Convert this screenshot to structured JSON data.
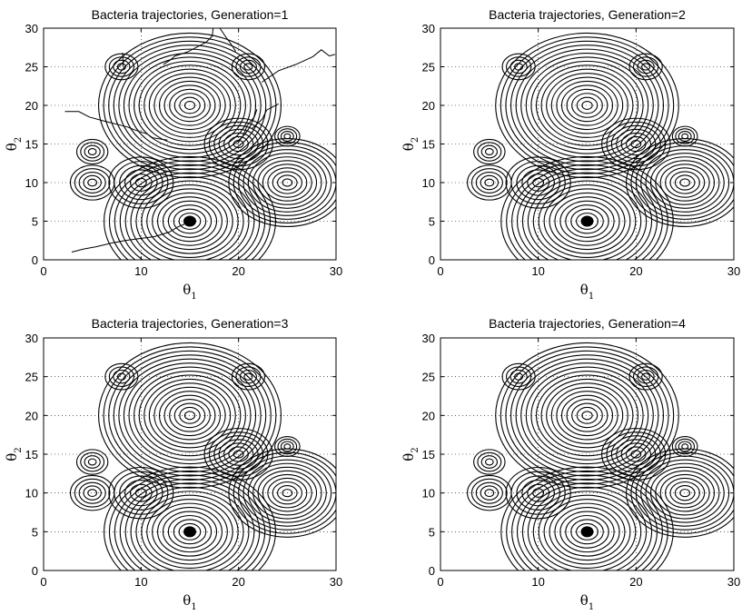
{
  "chart_data": [
    {
      "type": "contour",
      "title": "Bacteria trajectories, Generation=1",
      "xlabel": "θ1",
      "ylabel": "θ2",
      "xlim": [
        0,
        30
      ],
      "ylim": [
        0,
        30
      ],
      "xticks": [
        0,
        10,
        20,
        30
      ],
      "yticks": [
        0,
        5,
        10,
        15,
        20,
        25,
        30
      ],
      "grid": true,
      "peaks": [
        {
          "x": 15,
          "y": 20,
          "rings": 18
        },
        {
          "x": 15,
          "y": 5,
          "rings": 16
        },
        {
          "x": 25,
          "y": 10,
          "rings": 12
        },
        {
          "x": 20,
          "y": 15,
          "rings": 7
        },
        {
          "x": 10,
          "y": 10,
          "rings": 6
        },
        {
          "x": 5,
          "y": 10,
          "rings": 5
        },
        {
          "x": 5,
          "y": 14,
          "rings": 4
        },
        {
          "x": 8,
          "y": 25,
          "rings": 4
        },
        {
          "x": 21,
          "y": 25,
          "rings": 4
        },
        {
          "x": 25,
          "y": 16,
          "rings": 4
        }
      ],
      "trajectory_end": {
        "x": 15,
        "y": 5
      }
    },
    {
      "type": "contour",
      "title": "Bacteria trajectories, Generation=2",
      "xlabel": "θ1",
      "ylabel": "θ2",
      "xlim": [
        0,
        30
      ],
      "ylim": [
        0,
        30
      ],
      "xticks": [
        0,
        10,
        20,
        30
      ],
      "yticks": [
        0,
        5,
        10,
        15,
        20,
        25,
        30
      ],
      "grid": true,
      "peaks": [
        {
          "x": 15,
          "y": 20,
          "rings": 18
        },
        {
          "x": 15,
          "y": 5,
          "rings": 16
        },
        {
          "x": 25,
          "y": 10,
          "rings": 12
        },
        {
          "x": 20,
          "y": 15,
          "rings": 7
        },
        {
          "x": 10,
          "y": 10,
          "rings": 6
        },
        {
          "x": 5,
          "y": 10,
          "rings": 5
        },
        {
          "x": 5,
          "y": 14,
          "rings": 4
        },
        {
          "x": 8,
          "y": 25,
          "rings": 4
        },
        {
          "x": 21,
          "y": 25,
          "rings": 4
        },
        {
          "x": 25,
          "y": 16,
          "rings": 4
        }
      ],
      "trajectory_end": {
        "x": 15,
        "y": 5
      }
    },
    {
      "type": "contour",
      "title": "Bacteria trajectories, Generation=3",
      "xlabel": "θ1",
      "ylabel": "θ2",
      "xlim": [
        0,
        30
      ],
      "ylim": [
        0,
        30
      ],
      "xticks": [
        0,
        10,
        20,
        30
      ],
      "yticks": [
        0,
        5,
        10,
        15,
        20,
        25,
        30
      ],
      "grid": true,
      "peaks": [
        {
          "x": 15,
          "y": 20,
          "rings": 18
        },
        {
          "x": 15,
          "y": 5,
          "rings": 16
        },
        {
          "x": 25,
          "y": 10,
          "rings": 12
        },
        {
          "x": 20,
          "y": 15,
          "rings": 7
        },
        {
          "x": 10,
          "y": 10,
          "rings": 6
        },
        {
          "x": 5,
          "y": 10,
          "rings": 5
        },
        {
          "x": 5,
          "y": 14,
          "rings": 4
        },
        {
          "x": 8,
          "y": 25,
          "rings": 4
        },
        {
          "x": 21,
          "y": 25,
          "rings": 4
        },
        {
          "x": 25,
          "y": 16,
          "rings": 4
        }
      ],
      "trajectory_end": {
        "x": 15,
        "y": 5
      }
    },
    {
      "type": "contour",
      "title": "Bacteria trajectories, Generation=4",
      "xlabel": "θ1",
      "ylabel": "θ2",
      "xlim": [
        0,
        30
      ],
      "ylim": [
        0,
        30
      ],
      "xticks": [
        0,
        10,
        20,
        30
      ],
      "yticks": [
        0,
        5,
        10,
        15,
        20,
        25,
        30
      ],
      "grid": true,
      "peaks": [
        {
          "x": 15,
          "y": 20,
          "rings": 18
        },
        {
          "x": 15,
          "y": 5,
          "rings": 16
        },
        {
          "x": 25,
          "y": 10,
          "rings": 12
        },
        {
          "x": 20,
          "y": 15,
          "rings": 7
        },
        {
          "x": 10,
          "y": 10,
          "rings": 6
        },
        {
          "x": 5,
          "y": 10,
          "rings": 5
        },
        {
          "x": 5,
          "y": 14,
          "rings": 4
        },
        {
          "x": 8,
          "y": 25,
          "rings": 4
        },
        {
          "x": 21,
          "y": 25,
          "rings": 4
        },
        {
          "x": 25,
          "y": 16,
          "rings": 4
        }
      ],
      "trajectory_end": {
        "x": 15,
        "y": 5
      }
    }
  ]
}
